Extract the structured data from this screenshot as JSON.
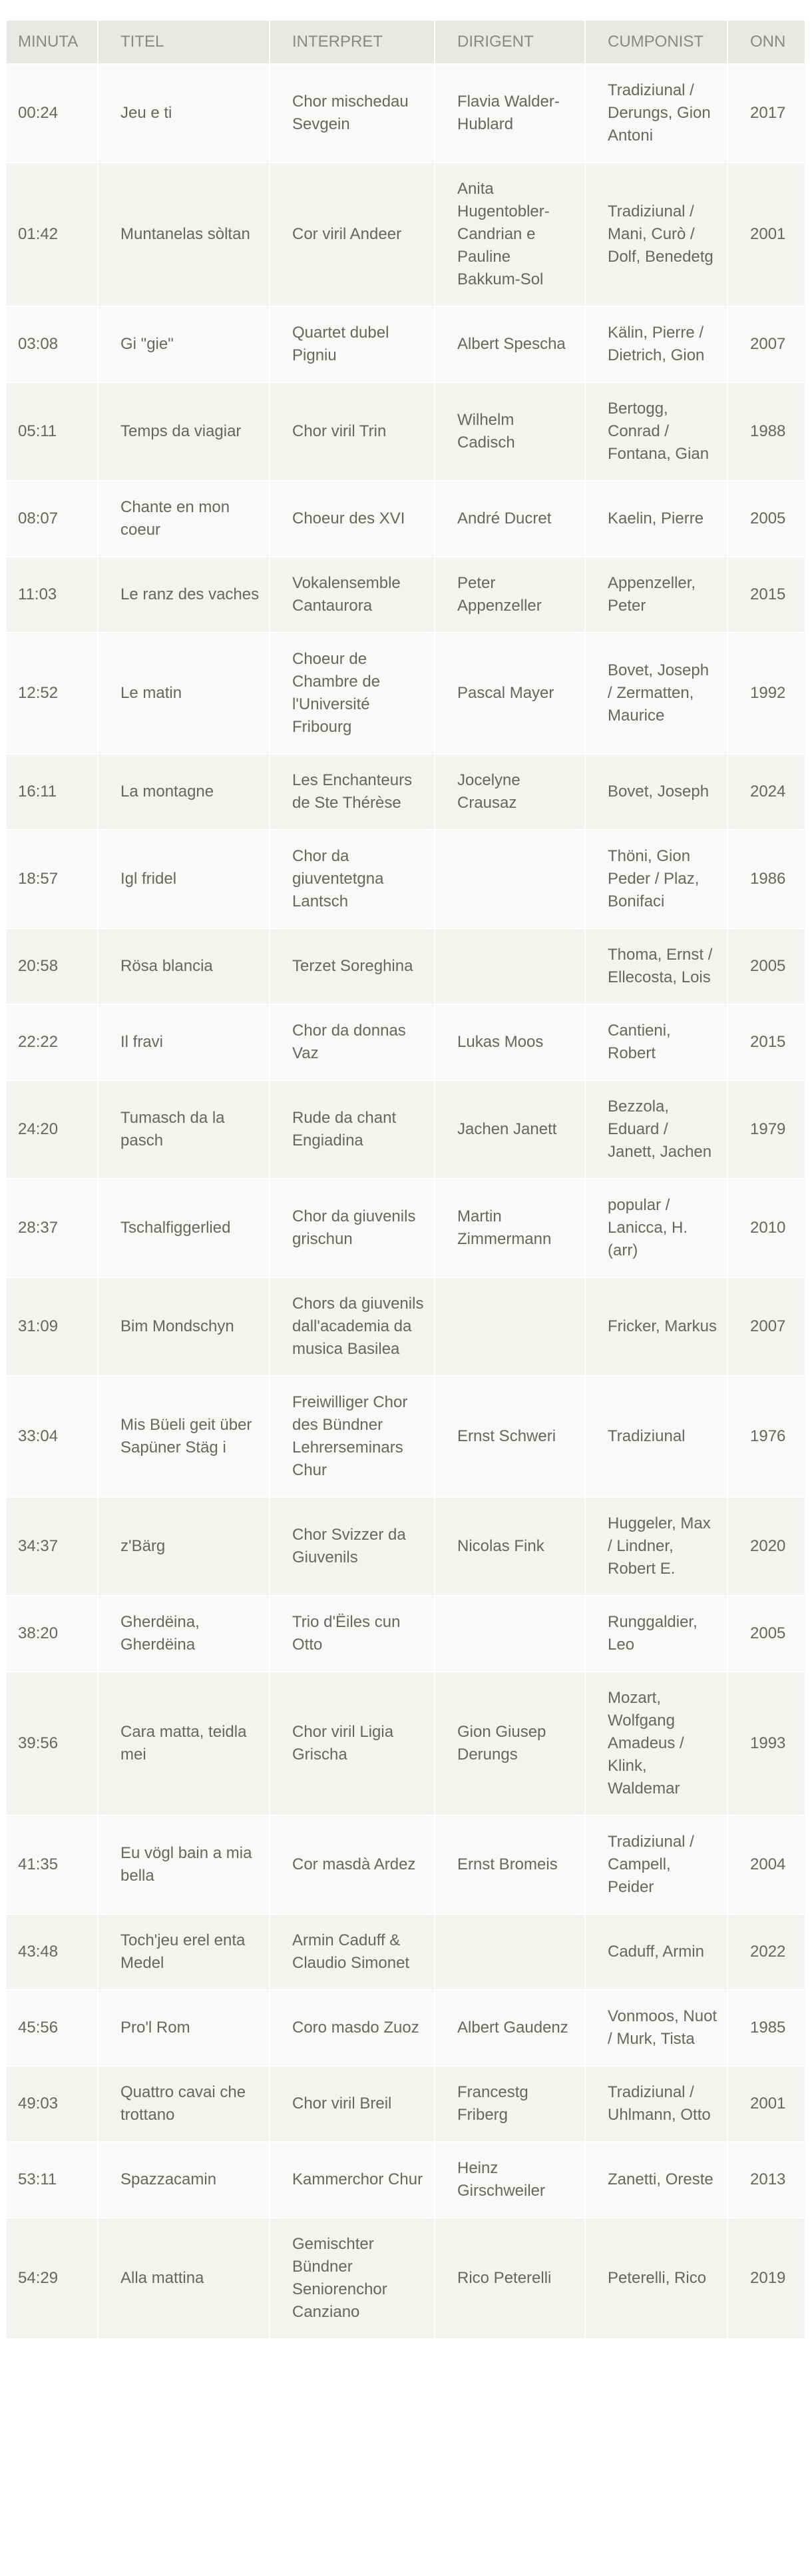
{
  "table": {
    "headers": [
      "MINUTA",
      "TITEL",
      "INTERPRET",
      "DIRIGENT",
      "CUMPONIST",
      "ONN"
    ],
    "rows": [
      [
        "00:24",
        "Jeu e ti",
        "Chor mischedau Sevgein",
        "Flavia Walder-Hublard",
        "Tradiziunal / Derungs, Gion Antoni",
        "2017"
      ],
      [
        "01:42",
        "Muntanelas sòltan",
        "Cor viril Andeer",
        "Anita Hugentobler-Candrian e Pauline Bakkum-Sol",
        "Tradiziunal / Mani, Curò / Dolf, Benedetg",
        "2001"
      ],
      [
        "03:08",
        "Gi \"gie\"",
        "Quartet dubel Pigniu",
        "Albert Spescha",
        "Kälin, Pierre / Dietrich, Gion",
        "2007"
      ],
      [
        "05:11",
        "Temps da viagiar",
        "Chor viril Trin",
        "Wilhelm Cadisch",
        "Bertogg, Conrad / Fontana, Gian",
        "1988"
      ],
      [
        "08:07",
        "Chante en mon coeur",
        "Choeur des XVI",
        "André Ducret",
        "Kaelin, Pierre",
        "2005"
      ],
      [
        "11:03",
        "Le ranz des vaches",
        "Vokalensemble Cantaurora",
        "Peter Appenzeller",
        "Appenzeller, Peter",
        "2015"
      ],
      [
        "12:52",
        "Le matin",
        "Choeur de Chambre de l'Université Fribourg",
        "Pascal Mayer",
        "Bovet, Joseph / Zermatten, Maurice",
        "1992"
      ],
      [
        "16:11",
        "La montagne",
        "Les Enchanteurs de Ste Thérèse",
        "Jocelyne Crausaz",
        "Bovet, Joseph",
        "2024"
      ],
      [
        "18:57",
        "Igl fridel",
        "Chor da giuventetgna Lantsch",
        "",
        "Thöni, Gion Peder / Plaz, Bonifaci",
        "1986"
      ],
      [
        "20:58",
        "Rösa blancia",
        "Terzet Soreghina",
        "",
        "Thoma, Ernst / Ellecosta, Lois",
        "2005"
      ],
      [
        "22:22",
        "Il fravi",
        "Chor da donnas Vaz",
        "Lukas Moos",
        "Cantieni, Robert",
        "2015"
      ],
      [
        "24:20",
        "Tumasch da la pasch",
        "Rude da chant Engiadina",
        "Jachen Janett",
        "Bezzola, Eduard / Janett, Jachen",
        "1979"
      ],
      [
        "28:37",
        "Tschalfiggerlied",
        "Chor da giuvenils grischun",
        "Martin Zimmermann",
        "popular / Lanicca, H. (arr)",
        "2010"
      ],
      [
        "31:09",
        "Bim Mondschyn",
        "Chors da giuvenils dall'academia da musica Basilea",
        "",
        "Fricker, Markus",
        "2007"
      ],
      [
        "33:04",
        "Mis Büeli geit über Sapüner Stäg i",
        "Freiwilliger Chor des Bündner Lehrerseminars Chur",
        "Ernst Schweri",
        "Tradiziunal",
        "1976"
      ],
      [
        "34:37",
        "z'Bärg",
        "Chor Svizzer da Giuvenils",
        "Nicolas Fink",
        "Huggeler, Max / Lindner, Robert E.",
        "2020"
      ],
      [
        "38:20",
        "Gherdëina, Gherdëina",
        "Trio d'Ëiles cun Otto",
        "",
        "Runggaldier, Leo",
        "2005"
      ],
      [
        "39:56",
        "Cara matta, teidla mei",
        "Chor viril Ligia Grischa",
        "Gion Giusep Derungs",
        "Mozart, Wolfgang Amadeus / Klink, Waldemar",
        "1993"
      ],
      [
        "41:35",
        "Eu vögl bain a mia bella",
        "Cor masdà Ardez",
        "Ernst Bromeis",
        "Tradiziunal / Campell, Peider",
        "2004"
      ],
      [
        "43:48",
        "Toch'jeu erel enta Medel",
        "Armin Caduff & Claudio Simonet",
        "",
        "Caduff, Armin",
        "2022"
      ],
      [
        "45:56",
        "Pro'l Rom",
        "Coro masdo Zuoz",
        "Albert Gaudenz",
        "Vonmoos, Nuot / Murk, Tista",
        "1985"
      ],
      [
        "49:03",
        "Quattro cavai che trottano",
        "Chor viril Breil",
        "Francestg Friberg",
        "Tradiziunal / Uhlmann, Otto",
        "2001"
      ],
      [
        "53:11",
        "Spazzacamin",
        "Kammerchor Chur",
        "Heinz Girschweiler",
        "Zanetti, Oreste",
        "2013"
      ],
      [
        "54:29",
        "Alla mattina",
        "Gemischter Bündner Seniorenchor Canziano",
        "Rico Peterelli",
        "Peterelli, Rico",
        "2019"
      ]
    ]
  }
}
